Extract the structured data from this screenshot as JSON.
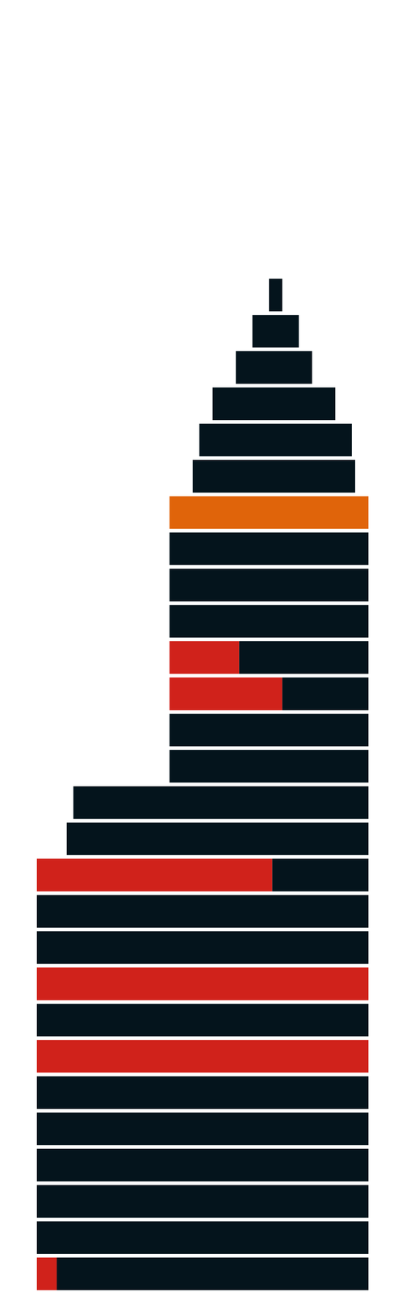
{
  "chart_data": {
    "type": "bar",
    "orientation": "horizontal",
    "stacked": true,
    "tick_labels": false,
    "grid": false,
    "categories": [
      null,
      null,
      null,
      null,
      null,
      null,
      null,
      null,
      null,
      null,
      null,
      null,
      null,
      null,
      null,
      null,
      null,
      null,
      null,
      null,
      null,
      null,
      null,
      null,
      null,
      null,
      null,
      null
    ],
    "offsets": [
      0,
      0,
      0,
      0,
      0,
      0,
      0,
      0,
      0,
      0,
      0,
      0,
      9,
      11,
      40,
      40,
      40,
      40,
      40,
      40,
      40,
      40,
      47,
      49,
      53,
      60,
      65,
      70
    ],
    "series": [
      {
        "color": "#d0221b",
        "values": [
          6,
          0,
          0,
          0,
          0,
          0,
          100,
          0,
          100,
          0,
          0,
          71,
          0,
          0,
          0,
          0,
          34,
          21,
          0,
          0,
          0,
          0,
          0,
          0,
          0,
          0,
          0,
          0
        ]
      },
      {
        "color": "#e0640a",
        "values": [
          0,
          0,
          0,
          0,
          0,
          0,
          0,
          0,
          0,
          0,
          0,
          0,
          0,
          0,
          0,
          0,
          0,
          0,
          0,
          0,
          0,
          60,
          0,
          0,
          0,
          0,
          0,
          0
        ]
      },
      {
        "color": "#04141c",
        "values": [
          94,
          100,
          100,
          100,
          100,
          100,
          0,
          100,
          0,
          100,
          100,
          29,
          91,
          89,
          60,
          60,
          26,
          39,
          60,
          60,
          60,
          0,
          49,
          46,
          37,
          23,
          14,
          4
        ]
      }
    ],
    "xlim": [
      0,
      100
    ]
  }
}
